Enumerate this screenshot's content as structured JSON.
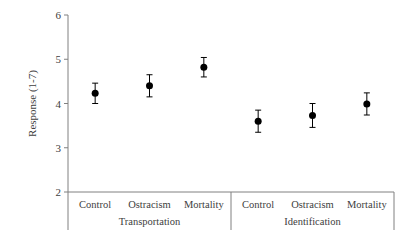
{
  "chart_data": {
    "type": "scatter",
    "y_label": "Response (1-7)",
    "categories": [
      "Control",
      "Ostracism",
      "Mortality",
      "Control",
      "Ostracism",
      "Mortality"
    ],
    "groups": [
      "Transportation",
      "Identification"
    ],
    "values": [
      4.23,
      4.4,
      4.82,
      3.6,
      3.73,
      3.99
    ],
    "errors": [
      0.23,
      0.25,
      0.22,
      0.25,
      0.27,
      0.25
    ],
    "color": "#000000",
    "marker": "circle",
    "ylim": [
      2,
      6
    ],
    "yticks": [
      2,
      3,
      4,
      5,
      6
    ],
    "grid": false
  }
}
